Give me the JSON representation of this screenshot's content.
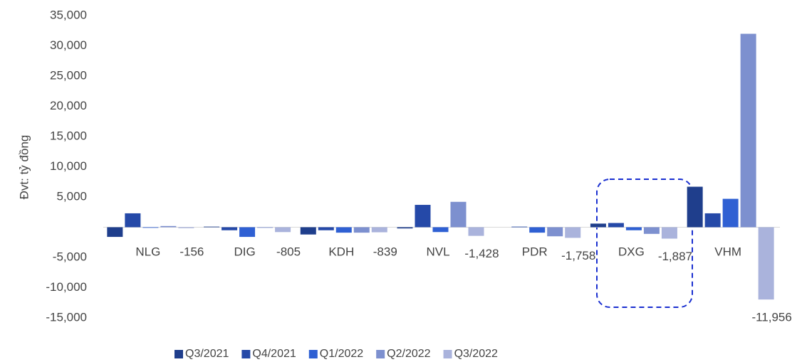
{
  "chart_data": {
    "type": "bar",
    "y_axis_label": "Đvt: tỷ đồng",
    "categories": [
      "NLG",
      "DIG",
      "KDH",
      "NVL",
      "PDR",
      "DXG",
      "VHM"
    ],
    "series": [
      {
        "name": "Q3/2021",
        "color": "#1f3e8c",
        "values": [
          -1600,
          100,
          -1200,
          -200,
          0,
          600,
          6700
        ]
      },
      {
        "name": "Q4/2021",
        "color": "#2549a8",
        "values": [
          2300,
          -500,
          -500,
          3700,
          100,
          700,
          2300
        ]
      },
      {
        "name": "Q1/2022",
        "color": "#2f60d3",
        "values": [
          -100,
          -1600,
          -900,
          -800,
          -900,
          -500,
          4700
        ]
      },
      {
        "name": "Q2/2022",
        "color": "#7d90cf",
        "values": [
          200,
          -100,
          -900,
          4200,
          -1500,
          -1100,
          32000
        ]
      },
      {
        "name": "Q3/2022",
        "color": "#aab3dc",
        "values": [
          -156,
          -805,
          -839,
          -1428,
          -1758,
          -1887,
          -11956
        ],
        "value_labels": [
          "-156",
          "-805",
          "-839",
          "-1,428",
          "-1,758",
          "-1,887",
          "-11,956"
        ]
      }
    ],
    "ylim": [
      -15000,
      35000
    ],
    "yticks": [
      {
        "value": -15000,
        "label": "-15,000"
      },
      {
        "value": -10000,
        "label": "-10,000"
      },
      {
        "value": -5000,
        "label": "-5,000"
      },
      {
        "value": 5000,
        "label": "5,000"
      },
      {
        "value": 10000,
        "label": "10,000"
      },
      {
        "value": 15000,
        "label": "15,000"
      },
      {
        "value": 20000,
        "label": "20,000"
      },
      {
        "value": 25000,
        "label": "25,000"
      },
      {
        "value": 30000,
        "label": "30,000"
      },
      {
        "value": 35000,
        "label": "35,000"
      }
    ],
    "grid": false,
    "legend": "bottom"
  }
}
